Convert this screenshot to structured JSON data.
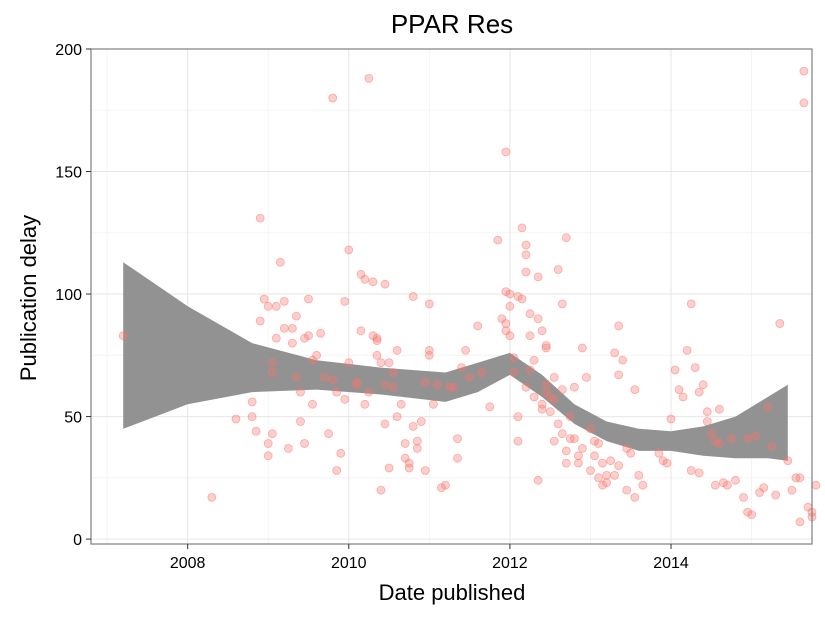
{
  "chart_data": {
    "type": "scatter",
    "title": "PPAR Res",
    "xlabel": "Date published",
    "ylabel": "Publication delay",
    "xlim": [
      2006.8,
      2015.75
    ],
    "ylim": [
      -2,
      200
    ],
    "x_ticks": [
      2008,
      2010,
      2012,
      2014
    ],
    "x_tick_labels": [
      "2008",
      "2010",
      "2012",
      "2014"
    ],
    "y_ticks": [
      0,
      50,
      100,
      150,
      200
    ],
    "y_tick_labels": [
      "0",
      "50",
      "100",
      "150",
      "200"
    ],
    "grid": true,
    "legend": "none",
    "point_color": "#f8766d",
    "band_color": "#8c8c8c",
    "smooth_band": {
      "x": [
        2007.2,
        2008.0,
        2008.8,
        2009.6,
        2010.4,
        2011.2,
        2011.6,
        2012.0,
        2012.4,
        2012.8,
        2013.2,
        2013.6,
        2014.0,
        2014.4,
        2014.8,
        2015.2,
        2015.45
      ],
      "upper": [
        113,
        95,
        80,
        73,
        70,
        68,
        72,
        76,
        67,
        55,
        48,
        45,
        44,
        46,
        50,
        58,
        63
      ],
      "lower": [
        45,
        55,
        60,
        61,
        59,
        56,
        60,
        67,
        58,
        47,
        40,
        36,
        36,
        34,
        33,
        33,
        32
      ]
    },
    "points": [
      [
        2007.2,
        83
      ],
      [
        2008.3,
        17
      ],
      [
        2008.6,
        49
      ],
      [
        2008.8,
        56
      ],
      [
        2008.8,
        50
      ],
      [
        2008.85,
        44
      ],
      [
        2008.9,
        89
      ],
      [
        2008.9,
        131
      ],
      [
        2008.95,
        98
      ],
      [
        2009.0,
        95
      ],
      [
        2009.0,
        34
      ],
      [
        2009.0,
        39
      ],
      [
        2009.05,
        43
      ],
      [
        2009.05,
        68
      ],
      [
        2009.05,
        72
      ],
      [
        2009.1,
        82
      ],
      [
        2009.1,
        95
      ],
      [
        2009.15,
        113
      ],
      [
        2009.2,
        86
      ],
      [
        2009.2,
        97
      ],
      [
        2009.25,
        37
      ],
      [
        2009.3,
        80
      ],
      [
        2009.3,
        86
      ],
      [
        2009.35,
        91
      ],
      [
        2009.35,
        66
      ],
      [
        2009.4,
        60
      ],
      [
        2009.4,
        48
      ],
      [
        2009.45,
        39
      ],
      [
        2009.45,
        82
      ],
      [
        2009.5,
        98
      ],
      [
        2009.5,
        83
      ],
      [
        2009.55,
        73
      ],
      [
        2009.55,
        55
      ],
      [
        2009.6,
        75
      ],
      [
        2009.65,
        84
      ],
      [
        2009.7,
        66
      ],
      [
        2009.75,
        43
      ],
      [
        2009.8,
        180
      ],
      [
        2009.8,
        65
      ],
      [
        2009.85,
        28
      ],
      [
        2009.85,
        60
      ],
      [
        2009.9,
        35
      ],
      [
        2009.95,
        97
      ],
      [
        2009.95,
        57
      ],
      [
        2010.0,
        118
      ],
      [
        2010.0,
        72
      ],
      [
        2010.1,
        64
      ],
      [
        2010.1,
        63
      ],
      [
        2010.15,
        85
      ],
      [
        2010.2,
        55
      ],
      [
        2010.25,
        60
      ],
      [
        2010.3,
        105
      ],
      [
        2010.35,
        82
      ],
      [
        2010.35,
        81
      ],
      [
        2010.4,
        20
      ],
      [
        2010.45,
        47
      ],
      [
        2010.45,
        104
      ],
      [
        2010.5,
        29
      ],
      [
        2010.15,
        108
      ],
      [
        2010.2,
        106
      ],
      [
        2010.25,
        188
      ],
      [
        2010.3,
        83
      ],
      [
        2010.35,
        75
      ],
      [
        2010.4,
        72
      ],
      [
        2010.45,
        63
      ],
      [
        2010.5,
        72
      ],
      [
        2010.55,
        68
      ],
      [
        2010.55,
        62
      ],
      [
        2010.6,
        50
      ],
      [
        2010.6,
        77
      ],
      [
        2010.65,
        55
      ],
      [
        2010.7,
        39
      ],
      [
        2010.7,
        33
      ],
      [
        2010.75,
        31
      ],
      [
        2010.75,
        29
      ],
      [
        2010.8,
        46
      ],
      [
        2010.8,
        99
      ],
      [
        2010.85,
        40
      ],
      [
        2010.85,
        37
      ],
      [
        2010.9,
        48
      ],
      [
        2010.95,
        28
      ],
      [
        2010.95,
        64
      ],
      [
        2011.0,
        77
      ],
      [
        2011.0,
        75
      ],
      [
        2011.0,
        96
      ],
      [
        2011.05,
        55
      ],
      [
        2011.1,
        63
      ],
      [
        2011.15,
        21
      ],
      [
        2011.2,
        22
      ],
      [
        2011.25,
        62
      ],
      [
        2011.3,
        62
      ],
      [
        2011.35,
        33
      ],
      [
        2011.35,
        41
      ],
      [
        2011.4,
        70
      ],
      [
        2011.45,
        77
      ],
      [
        2011.5,
        66
      ],
      [
        2011.6,
        87
      ],
      [
        2011.65,
        68
      ],
      [
        2011.75,
        54
      ],
      [
        2011.85,
        122
      ],
      [
        2011.95,
        158
      ],
      [
        2011.95,
        101
      ],
      [
        2012.0,
        100
      ],
      [
        2012.0,
        83
      ],
      [
        2012.1,
        40
      ],
      [
        2012.1,
        50
      ],
      [
        2012.2,
        62
      ],
      [
        2012.25,
        69
      ],
      [
        2012.3,
        58
      ],
      [
        2012.35,
        107
      ],
      [
        2012.35,
        24
      ],
      [
        2012.4,
        55
      ],
      [
        2012.45,
        78
      ],
      [
        2011.9,
        90
      ],
      [
        2011.95,
        88
      ],
      [
        2011.95,
        85
      ],
      [
        2012.0,
        95
      ],
      [
        2012.05,
        68
      ],
      [
        2012.05,
        74
      ],
      [
        2012.1,
        99
      ],
      [
        2012.15,
        98
      ],
      [
        2012.15,
        127
      ],
      [
        2012.2,
        120
      ],
      [
        2012.2,
        116
      ],
      [
        2012.2,
        109
      ],
      [
        2012.25,
        92
      ],
      [
        2012.25,
        83
      ],
      [
        2012.3,
        73
      ],
      [
        2012.35,
        90
      ],
      [
        2012.4,
        53
      ],
      [
        2012.4,
        85
      ],
      [
        2012.45,
        60
      ],
      [
        2012.45,
        79
      ],
      [
        2012.45,
        63
      ],
      [
        2012.5,
        52
      ],
      [
        2012.5,
        58
      ],
      [
        2012.55,
        57
      ],
      [
        2012.55,
        40
      ],
      [
        2012.55,
        66
      ],
      [
        2012.6,
        110
      ],
      [
        2012.6,
        47
      ],
      [
        2012.65,
        96
      ],
      [
        2012.65,
        43
      ],
      [
        2012.65,
        61
      ],
      [
        2012.7,
        123
      ],
      [
        2012.7,
        36
      ],
      [
        2012.7,
        31
      ],
      [
        2012.75,
        50
      ],
      [
        2012.75,
        41
      ],
      [
        2012.8,
        62
      ],
      [
        2012.8,
        41
      ],
      [
        2012.85,
        34
      ],
      [
        2012.85,
        31
      ],
      [
        2012.9,
        78
      ],
      [
        2012.9,
        37
      ],
      [
        2012.95,
        66
      ],
      [
        2013.0,
        45
      ],
      [
        2013.0,
        28
      ],
      [
        2013.05,
        40
      ],
      [
        2013.05,
        34
      ],
      [
        2013.1,
        39
      ],
      [
        2013.1,
        25
      ],
      [
        2013.15,
        31
      ],
      [
        2013.15,
        22
      ],
      [
        2013.2,
        23
      ],
      [
        2013.2,
        26
      ],
      [
        2013.25,
        32
      ],
      [
        2013.3,
        76
      ],
      [
        2013.3,
        26
      ],
      [
        2013.35,
        87
      ],
      [
        2013.35,
        67
      ],
      [
        2013.35,
        30
      ],
      [
        2013.4,
        73
      ],
      [
        2013.45,
        20
      ],
      [
        2013.45,
        37
      ],
      [
        2013.5,
        35
      ],
      [
        2013.55,
        61
      ],
      [
        2013.55,
        17
      ],
      [
        2013.6,
        26
      ],
      [
        2013.65,
        22
      ],
      [
        2013.85,
        35
      ],
      [
        2013.9,
        32
      ],
      [
        2013.95,
        31
      ],
      [
        2014.0,
        49
      ],
      [
        2014.05,
        69
      ],
      [
        2014.1,
        61
      ],
      [
        2014.15,
        58
      ],
      [
        2014.2,
        77
      ],
      [
        2014.25,
        28
      ],
      [
        2014.25,
        96
      ],
      [
        2014.3,
        70
      ],
      [
        2014.35,
        60
      ],
      [
        2014.35,
        27
      ],
      [
        2014.4,
        63
      ],
      [
        2014.45,
        52
      ],
      [
        2014.45,
        48
      ],
      [
        2014.5,
        43
      ],
      [
        2014.55,
        22
      ],
      [
        2014.55,
        40
      ],
      [
        2014.6,
        53
      ],
      [
        2014.6,
        39
      ],
      [
        2014.65,
        23
      ],
      [
        2014.7,
        22
      ],
      [
        2014.75,
        41
      ],
      [
        2014.8,
        24
      ],
      [
        2014.9,
        17
      ],
      [
        2014.95,
        11
      ],
      [
        2014.95,
        41
      ],
      [
        2015.0,
        10
      ],
      [
        2015.05,
        42
      ],
      [
        2015.1,
        19
      ],
      [
        2015.15,
        21
      ],
      [
        2015.2,
        54
      ],
      [
        2015.25,
        38
      ],
      [
        2015.3,
        18
      ],
      [
        2015.35,
        88
      ],
      [
        2015.45,
        32
      ],
      [
        2015.5,
        20
      ],
      [
        2015.55,
        25
      ],
      [
        2015.6,
        25
      ],
      [
        2015.6,
        7
      ],
      [
        2015.65,
        191
      ],
      [
        2015.65,
        178
      ],
      [
        2015.7,
        13
      ],
      [
        2015.75,
        11
      ],
      [
        2015.75,
        9
      ],
      [
        2015.8,
        22
      ]
    ]
  }
}
